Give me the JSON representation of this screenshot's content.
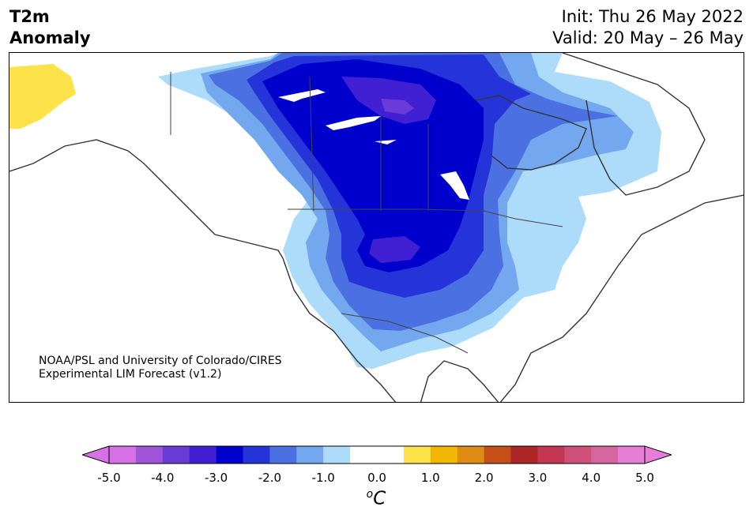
{
  "title": {
    "line1": "T2m",
    "line2": "Anomaly"
  },
  "dates": {
    "init": "Init: Thu 26 May 2022",
    "valid": "Valid: 20 May – 26 May"
  },
  "credit": {
    "line1": "NOAA/PSL and University of Colorado/CIRES",
    "line2": "Experimental LIM Forecast (v1.2)"
  },
  "colorbar": {
    "unit_base": "o",
    "unit_letter": "C",
    "ticks": [
      "-5.0",
      "-4.0",
      "-3.0",
      "-2.0",
      "-1.0",
      "0.0",
      "1.0",
      "2.0",
      "3.0",
      "4.0",
      "5.0"
    ],
    "colors": [
      "#d671e6",
      "#9e55d8",
      "#6a3bd6",
      "#4020d2",
      "#0000cc",
      "#2434d8",
      "#4a70e2",
      "#74a8ee",
      "#acdcfa",
      "#ffffff",
      "#ffffff",
      "#fde24a",
      "#f2b705",
      "#de8c14",
      "#c55016",
      "#ad2626",
      "#c53652",
      "#d0507c",
      "#d6679e",
      "#e67ed8"
    ],
    "under_color": "#d671e6",
    "over_color": "#e67ed8"
  }
}
